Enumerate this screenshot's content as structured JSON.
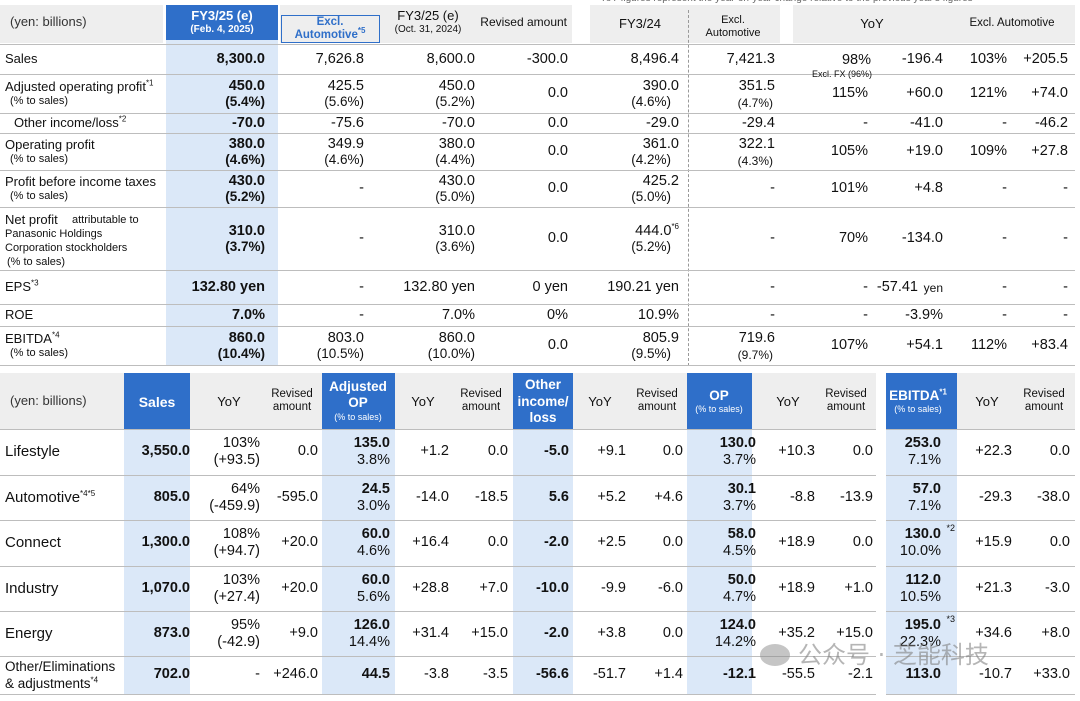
{
  "top_table": {
    "header": {
      "unit": "(yen: billions)",
      "fy325_e_title": "FY3/25 (e)",
      "fy325_e_date": "(Feb. 4, 2025)",
      "excl_auto_title": "Excl.",
      "excl_auto_title2": "Automotive",
      "excl_auto_note": "*5",
      "fy325_e_oct_title": "FY3/25 (e)",
      "fy325_e_oct_date": "(Oct. 31, 2024)",
      "revised_amount": "Revised amount",
      "fy324": "FY3/24",
      "excl_auto2_title": "Excl.",
      "excl_auto2_title2": "Automotive",
      "excl_auto2_note": "*5",
      "yoy": "YoY",
      "yoy_excl_auto": "Excl. Automotive",
      "yoy_excl_auto_note": "*5",
      "top_note": "YoY figures represent the year-on-year change relative to the previous year's figures"
    },
    "rows": [
      {
        "label": "Sales",
        "note": "",
        "sub": "",
        "e": "8,300.0",
        "e_pct": "",
        "ex": "7,626.8",
        "ex_pct": "",
        "oct": "8,600.0",
        "oct_pct": "",
        "rev": "-300.0",
        "fy24": "8,496.4",
        "fy24_pct": "",
        "fy24ex": "7,421.3",
        "fy24ex_pct": "",
        "yoy_pct": "98%",
        "yoy_pct_sub": "Excl. FX (96%)",
        "yoy_abs": "-196.4",
        "yex_pct": "103%",
        "yex_abs": "+205.5"
      },
      {
        "label": "Adjusted operating profit",
        "note": "*1",
        "sub": "(% to sales)",
        "e": "450.0",
        "e_pct": "(5.4%)",
        "ex": "425.5",
        "ex_pct": "(5.6%)",
        "oct": "450.0",
        "oct_pct": "(5.2%)",
        "rev": "0.0",
        "fy24": "390.0",
        "fy24_pct": "(4.6%)",
        "fy24ex": "351.5",
        "fy24ex_pct": "(4.7%)",
        "yoy_pct": "115%",
        "yoy_pct_sub": "",
        "yoy_abs": "+60.0",
        "yex_pct": "121%",
        "yex_abs": "+74.0"
      },
      {
        "label": "Other income/loss",
        "note": "*2",
        "sub": "",
        "e": "-70.0",
        "e_pct": "",
        "ex": "-75.6",
        "ex_pct": "",
        "oct": "-70.0",
        "oct_pct": "",
        "rev": "0.0",
        "fy24": "-29.0",
        "fy24_pct": "",
        "fy24ex": "-29.4",
        "fy24ex_pct": "",
        "yoy_pct": "-",
        "yoy_pct_sub": "",
        "yoy_abs": "-41.0",
        "yex_pct": "-",
        "yex_abs": "-46.2"
      },
      {
        "label": "Operating profit",
        "note": "",
        "sub": "(% to sales)",
        "e": "380.0",
        "e_pct": "(4.6%)",
        "ex": "349.9",
        "ex_pct": "(4.6%)",
        "oct": "380.0",
        "oct_pct": "(4.4%)",
        "rev": "0.0",
        "fy24": "361.0",
        "fy24_pct": "(4.2%)",
        "fy24ex": "322.1",
        "fy24ex_pct": "(4.3%)",
        "yoy_pct": "105%",
        "yoy_pct_sub": "",
        "yoy_abs": "+19.0",
        "yex_pct": "109%",
        "yex_abs": "+27.8"
      },
      {
        "label": "Profit before income taxes",
        "note": "",
        "sub": "(% to sales)",
        "e": "430.0",
        "e_pct": "(5.2%)",
        "ex": "-",
        "ex_pct": "",
        "oct": "430.0",
        "oct_pct": "(5.0%)",
        "rev": "0.0",
        "fy24": "425.2",
        "fy24_pct": "(5.0%)",
        "fy24ex": "-",
        "fy24ex_pct": "",
        "yoy_pct": "101%",
        "yoy_pct_sub": "",
        "yoy_abs": "+4.8",
        "yex_pct": "-",
        "yex_abs": "-"
      },
      {
        "label": "Net profit",
        "label2": "attributable to",
        "label3": "Panasonic Holdings",
        "label4": "Corporation stockholders",
        "note": "",
        "sub": "(% to sales)",
        "e": "310.0",
        "e_pct": "(3.7%)",
        "ex": "-",
        "ex_pct": "",
        "oct": "310.0",
        "oct_pct": "(3.6%)",
        "rev": "0.0",
        "fy24": "444.0",
        "fy24_note": "*6",
        "fy24_pct": "(5.2%)",
        "fy24ex": "-",
        "fy24ex_pct": "",
        "yoy_pct": "70%",
        "yoy_pct_sub": "",
        "yoy_abs": "-134.0",
        "yex_pct": "-",
        "yex_abs": "-"
      },
      {
        "label": "EPS",
        "note": "*3",
        "sub": "",
        "e": "132.80 yen",
        "e_pct": "",
        "ex": "-",
        "ex_pct": "",
        "oct": "132.80 yen",
        "oct_pct": "",
        "rev": "0 yen",
        "fy24": "190.21 yen",
        "fy24_pct": "",
        "fy24ex": "-",
        "fy24ex_pct": "",
        "yoy_pct": "-",
        "yoy_pct_sub": "",
        "yoy_abs": "-57.41",
        "yoy_abs_unit": "yen",
        "yex_pct": "-",
        "yex_abs": "-"
      },
      {
        "label": "ROE",
        "note": "",
        "sub": "",
        "e": "7.0%",
        "e_pct": "",
        "ex": "-",
        "ex_pct": "",
        "oct": "7.0%",
        "oct_pct": "",
        "rev": "0%",
        "fy24": "10.9%",
        "fy24_pct": "",
        "fy24ex": "-",
        "fy24ex_pct": "",
        "yoy_pct": "-",
        "yoy_pct_sub": "",
        "yoy_abs": "-3.9%",
        "yex_pct": "-",
        "yex_abs": "-"
      },
      {
        "label": "EBITDA",
        "note": "*4",
        "sub": "(% to sales)",
        "e": "860.0",
        "e_pct": "(10.4%)",
        "ex": "803.0",
        "ex_pct": "(10.5%)",
        "oct": "860.0",
        "oct_pct": "(10.0%)",
        "rev": "0.0",
        "fy24": "805.9",
        "fy24_pct": "(9.5%)",
        "fy24ex": "719.6",
        "fy24ex_pct": "(9.7%)",
        "yoy_pct": "107%",
        "yoy_pct_sub": "",
        "yoy_abs": "+54.1",
        "yex_pct": "112%",
        "yex_abs": "+83.4"
      }
    ]
  },
  "bottom_table": {
    "header": {
      "unit": "(yen: billions)",
      "sales": "Sales",
      "yoy": "YoY",
      "revised": "Revised",
      "amount": "amount",
      "adj_op": "Adjusted",
      "adj_op2": "OP",
      "adj_op_sub": "(% to sales)",
      "other": "Other",
      "other2": "income/",
      "other3": "loss",
      "op": "OP",
      "op_sub": "(% to sales)",
      "ebitda": "EBITDA",
      "ebitda_note": "*1",
      "ebitda_sub": "(% to sales)"
    },
    "rows": [
      {
        "label": "Lifestyle",
        "label2": "",
        "note": "",
        "sales": "3,550.0",
        "s_yoy": "103%",
        "s_yoy2": "(+93.5)",
        "s_rev": "0.0",
        "aop": "135.0",
        "aop_pct": "3.8%",
        "aop_yoy": "+1.2",
        "aop_rev": "0.0",
        "oth": "-5.0",
        "oth_yoy": "+9.1",
        "oth_rev": "0.0",
        "op": "130.0",
        "op_pct": "3.7%",
        "op_yoy": "+10.3",
        "op_rev": "0.0",
        "eb": "253.0",
        "eb_note": "",
        "eb_pct": "7.1%",
        "eb_yoy": "+22.3",
        "eb_rev": "0.0"
      },
      {
        "label": "Automotive",
        "label2": "",
        "note": "*4*5",
        "sales": "805.0",
        "s_yoy": "64%",
        "s_yoy2": "(-459.9)",
        "s_rev": "-595.0",
        "aop": "24.5",
        "aop_pct": "3.0%",
        "aop_yoy": "-14.0",
        "aop_rev": "-18.5",
        "oth": "5.6",
        "oth_yoy": "+5.2",
        "oth_rev": "+4.6",
        "op": "30.1",
        "op_pct": "3.7%",
        "op_yoy": "-8.8",
        "op_rev": "-13.9",
        "eb": "57.0",
        "eb_note": "",
        "eb_pct": "7.1%",
        "eb_yoy": "-29.3",
        "eb_rev": "-38.0"
      },
      {
        "label": "Connect",
        "label2": "",
        "note": "",
        "sales": "1,300.0",
        "s_yoy": "108%",
        "s_yoy2": "(+94.7)",
        "s_rev": "+20.0",
        "aop": "60.0",
        "aop_pct": "4.6%",
        "aop_yoy": "+16.4",
        "aop_rev": "0.0",
        "oth": "-2.0",
        "oth_yoy": "+2.5",
        "oth_rev": "0.0",
        "op": "58.0",
        "op_pct": "4.5%",
        "op_yoy": "+18.9",
        "op_rev": "0.0",
        "eb": "130.0",
        "eb_note": "*2",
        "eb_pct": "10.0%",
        "eb_yoy": "+15.9",
        "eb_rev": "0.0"
      },
      {
        "label": "Industry",
        "label2": "",
        "note": "",
        "sales": "1,070.0",
        "s_yoy": "103%",
        "s_yoy2": "(+27.4)",
        "s_rev": "+20.0",
        "aop": "60.0",
        "aop_pct": "5.6%",
        "aop_yoy": "+28.8",
        "aop_rev": "+7.0",
        "oth": "-10.0",
        "oth_yoy": "-9.9",
        "oth_rev": "-6.0",
        "op": "50.0",
        "op_pct": "4.7%",
        "op_yoy": "+18.9",
        "op_rev": "+1.0",
        "eb": "112.0",
        "eb_note": "",
        "eb_pct": "10.5%",
        "eb_yoy": "+21.3",
        "eb_rev": "-3.0"
      },
      {
        "label": "Energy",
        "label2": "",
        "note": "",
        "sales": "873.0",
        "s_yoy": "95%",
        "s_yoy2": "(-42.9)",
        "s_rev": "+9.0",
        "aop": "126.0",
        "aop_pct": "14.4%",
        "aop_yoy": "+31.4",
        "aop_rev": "+15.0",
        "oth": "-2.0",
        "oth_yoy": "+3.8",
        "oth_rev": "0.0",
        "op": "124.0",
        "op_pct": "14.2%",
        "op_yoy": "+35.2",
        "op_rev": "+15.0",
        "eb": "195.0",
        "eb_note": "*3",
        "eb_pct": "22.3%",
        "eb_yoy": "+34.6",
        "eb_rev": "+8.0"
      },
      {
        "label": "Other/Eliminations",
        "label2": "& adjustments",
        "note": "*4",
        "sales": "702.0",
        "s_yoy": "-",
        "s_yoy2": "",
        "s_rev": "+246.0",
        "aop": "44.5",
        "aop_pct": "",
        "aop_yoy": "-3.8",
        "aop_rev": "-3.5",
        "oth": "-56.6",
        "oth_yoy": "-51.7",
        "oth_rev": "+1.4",
        "op": "-12.1",
        "op_pct": "",
        "op_yoy": "-55.5",
        "op_rev": "-2.1",
        "eb": "113.0",
        "eb_note": "",
        "eb_pct": "",
        "eb_yoy": "-10.7",
        "eb_rev": "+33.0"
      }
    ]
  },
  "watermark": "公众号 · 芝能科技",
  "colors": {
    "header_blue": "#2f6fc9",
    "light_blue": "#dbe8f8",
    "grey_header": "#eeeeee",
    "line": "#bdbdbd"
  }
}
